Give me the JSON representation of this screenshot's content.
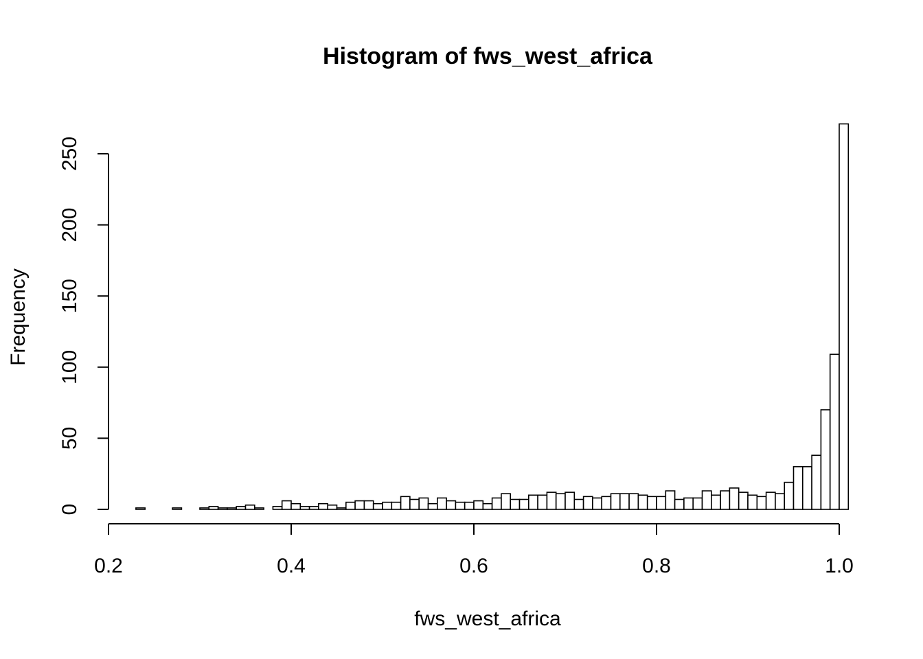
{
  "chart_data": {
    "type": "bar",
    "title": "Histogram of fws_west_africa",
    "xlabel": "fws_west_africa",
    "ylabel": "Frequency",
    "xlim": [
      0.2,
      1.0
    ],
    "ylim": [
      0,
      270
    ],
    "x_ticks": [
      0.2,
      0.4,
      0.6,
      0.8,
      1.0
    ],
    "x_tick_labels": [
      "0.2",
      "0.4",
      "0.6",
      "0.8",
      "1.0"
    ],
    "y_ticks": [
      0,
      50,
      100,
      150,
      200,
      250
    ],
    "y_tick_labels": [
      "0",
      "50",
      "100",
      "150",
      "200",
      "250"
    ],
    "bin_width": 0.01,
    "bin_start": 0.23,
    "values": [
      1,
      0,
      0,
      0,
      1,
      0,
      0,
      1,
      2,
      1,
      1,
      2,
      3,
      1,
      0,
      2,
      6,
      4,
      2,
      2,
      4,
      3,
      1,
      5,
      6,
      6,
      4,
      5,
      5,
      9,
      7,
      8,
      4,
      8,
      6,
      5,
      5,
      6,
      4,
      8,
      11,
      7,
      7,
      10,
      10,
      12,
      11,
      12,
      7,
      9,
      8,
      9,
      11,
      11,
      11,
      10,
      9,
      9,
      13,
      7,
      8,
      8,
      13,
      10,
      13,
      15,
      12,
      10,
      9,
      12,
      11,
      19,
      30,
      30,
      38,
      70,
      109,
      271
    ],
    "grid": false,
    "legend": "none",
    "colors": {
      "bar_fill": "#ffffff",
      "bar_stroke": "#000000"
    }
  }
}
